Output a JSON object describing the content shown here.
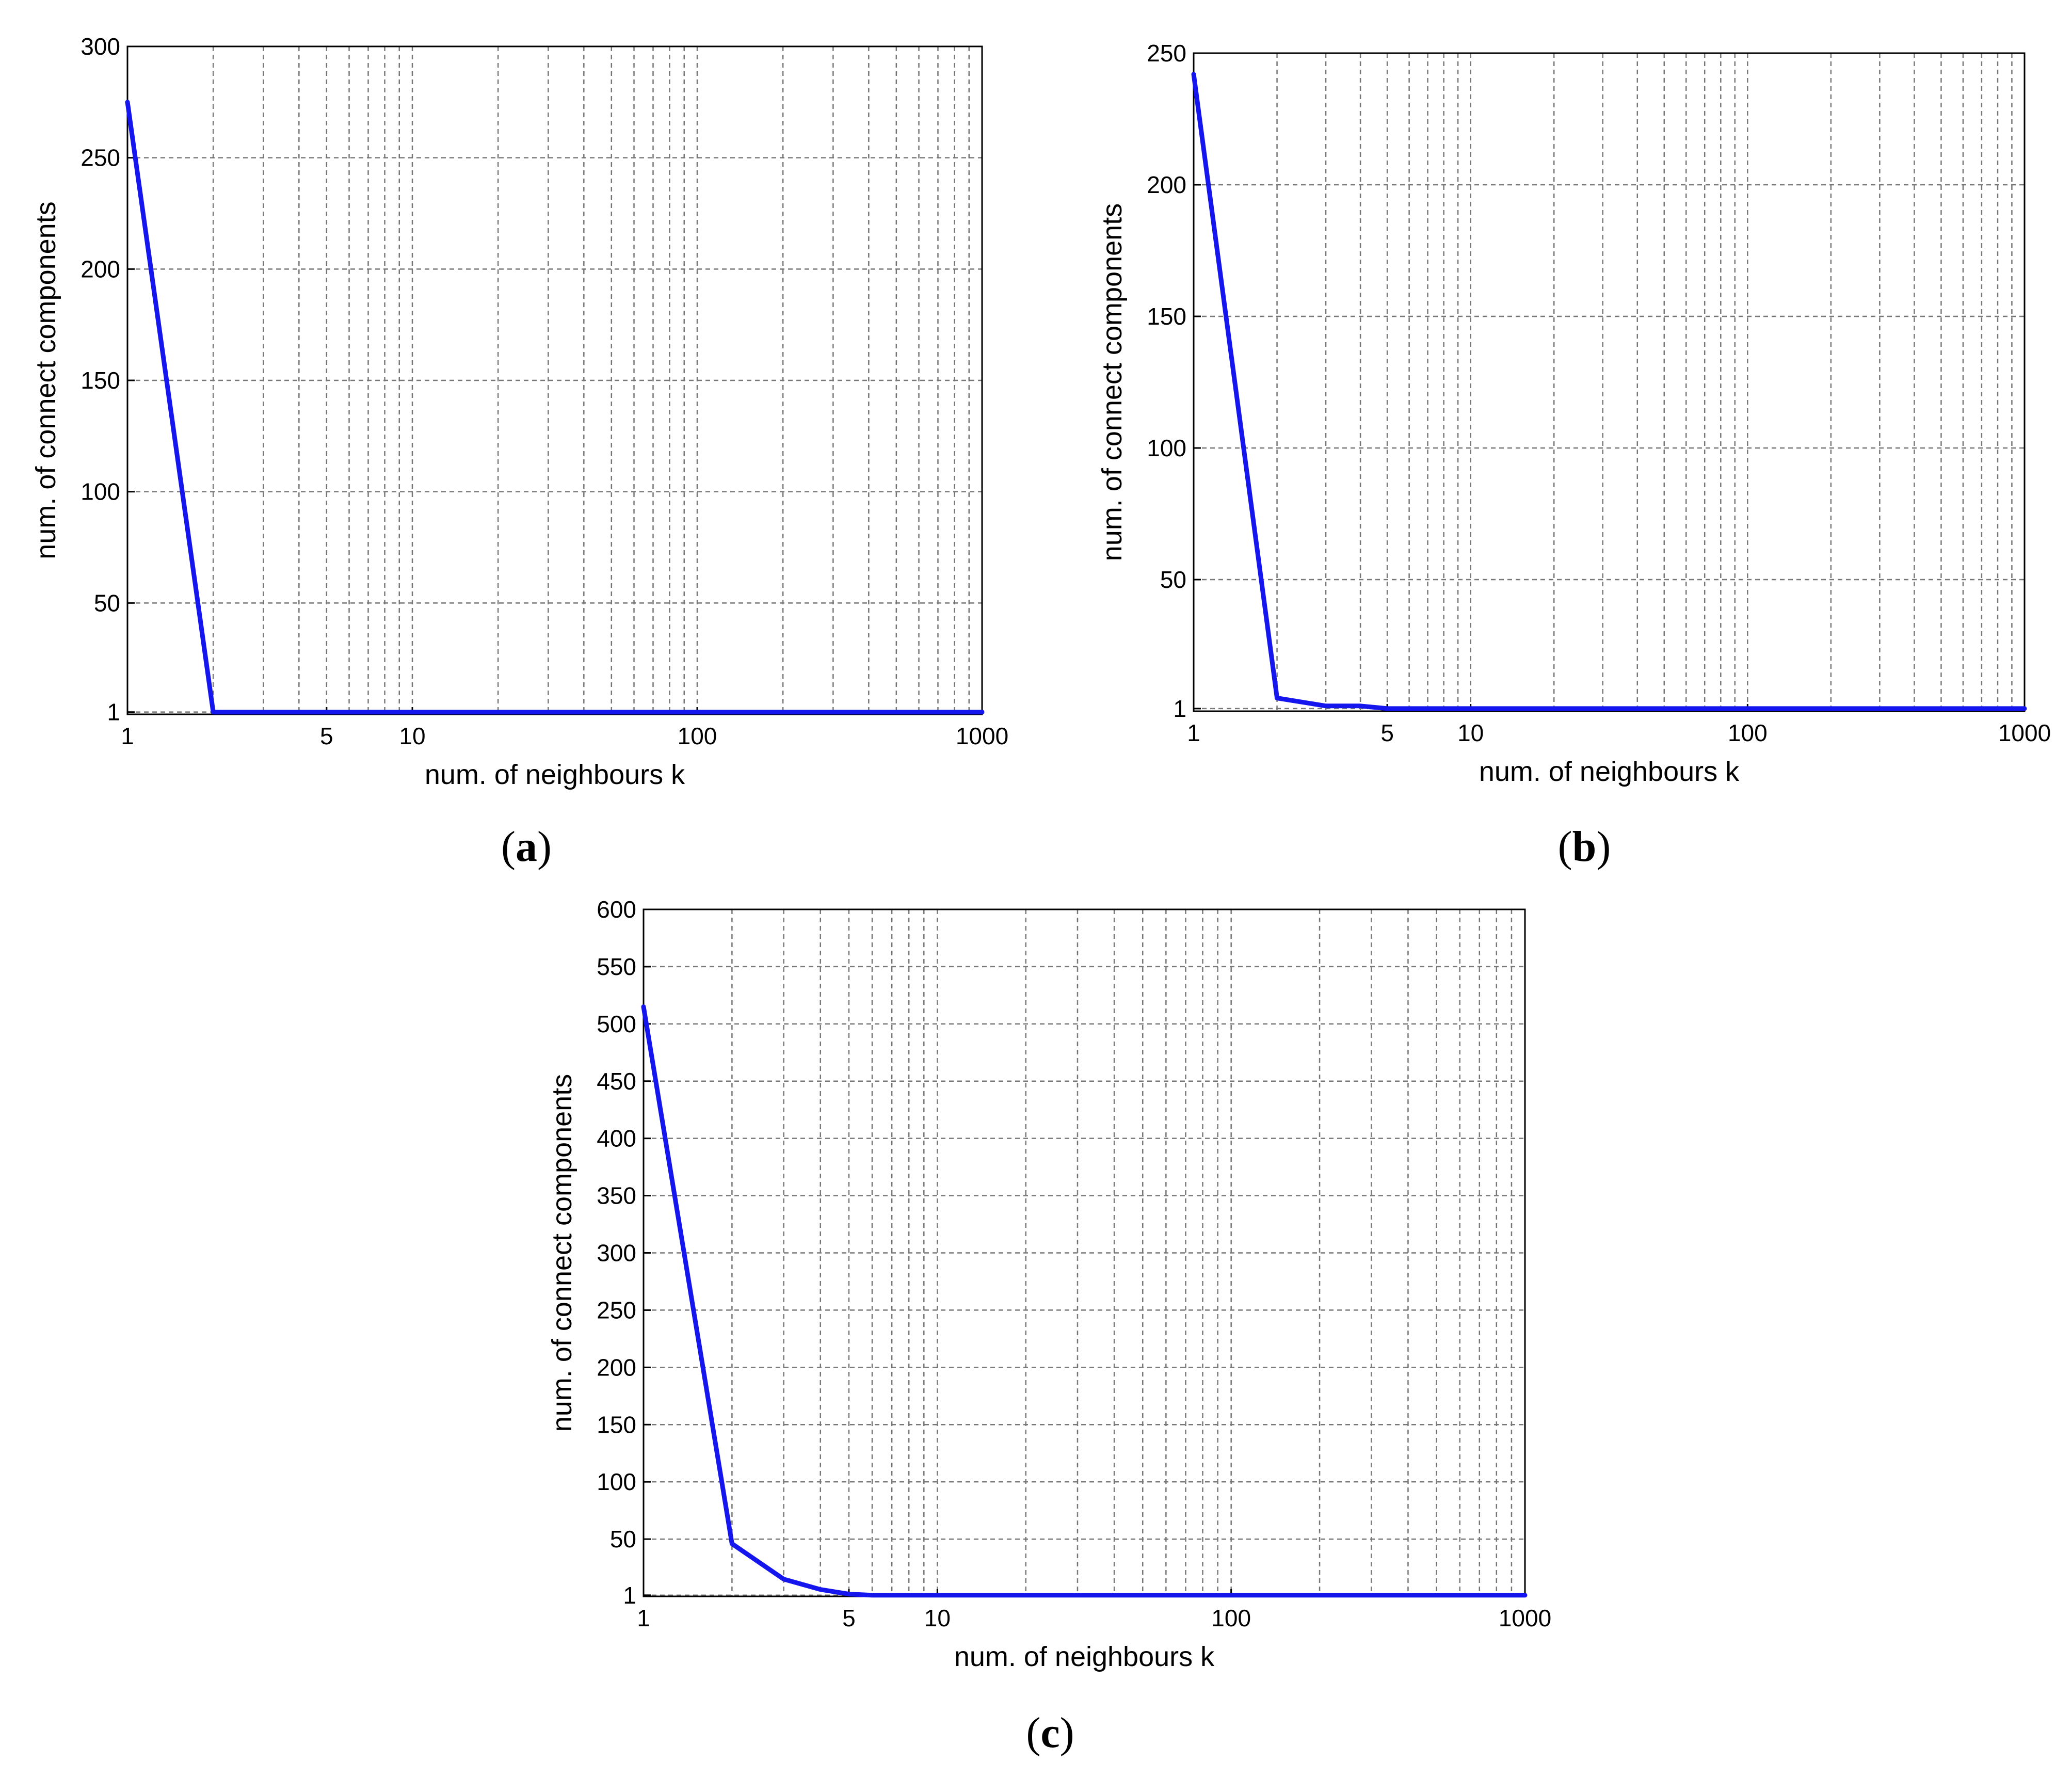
{
  "colors": {
    "series": "#1515ee",
    "grid": "#777777",
    "axes": "#000000"
  },
  "chart_data": [
    {
      "type": "line",
      "panel_label": {
        "open": "(",
        "letter": "a",
        "close": ")"
      },
      "xlabel": "num. of neighbours k",
      "ylabel": "num. of connect components",
      "xscale": "log",
      "xlim": [
        1,
        1000
      ],
      "ylim": [
        0,
        300
      ],
      "xticks": [
        1,
        5,
        10,
        100,
        1000
      ],
      "xtick_labels": [
        "1",
        "5",
        "10",
        "100",
        "1000"
      ],
      "yticks": [
        1,
        50,
        100,
        150,
        200,
        250,
        300
      ],
      "ytick_labels": [
        "1",
        "50",
        "100",
        "150",
        "200",
        "250",
        "300"
      ],
      "grid": true,
      "series": [
        {
          "x": [
            1,
            2,
            3,
            5,
            10,
            100,
            1000
          ],
          "y": [
            275,
            1,
            1,
            1,
            1,
            1,
            1
          ]
        }
      ]
    },
    {
      "type": "line",
      "panel_label": {
        "open": "(",
        "letter": "b",
        "close": ")"
      },
      "xlabel": "num. of neighbours k",
      "ylabel": "num. of connect components",
      "xscale": "log",
      "xlim": [
        1,
        1000
      ],
      "ylim": [
        0,
        250
      ],
      "xticks": [
        1,
        5,
        10,
        100,
        1000
      ],
      "xtick_labels": [
        "1",
        "5",
        "10",
        "100",
        "1000"
      ],
      "yticks": [
        1,
        50,
        100,
        150,
        200,
        250
      ],
      "ytick_labels": [
        "1",
        "50",
        "100",
        "150",
        "200",
        "250"
      ],
      "grid": true,
      "series": [
        {
          "x": [
            1,
            2,
            3,
            4,
            5,
            10,
            100,
            1000
          ],
          "y": [
            242,
            5,
            2,
            2,
            1,
            1,
            1,
            1
          ]
        }
      ]
    },
    {
      "type": "line",
      "panel_label": {
        "open": "(",
        "letter": "c",
        "close": ")"
      },
      "xlabel": "num. of neighbours k",
      "ylabel": "num. of connect components",
      "xscale": "log",
      "xlim": [
        1,
        1000
      ],
      "ylim": [
        0,
        600
      ],
      "xticks": [
        1,
        5,
        10,
        100,
        1000
      ],
      "xtick_labels": [
        "1",
        "5",
        "10",
        "100",
        "1000"
      ],
      "yticks": [
        1,
        50,
        100,
        150,
        200,
        250,
        300,
        350,
        400,
        450,
        500,
        550,
        600
      ],
      "ytick_labels": [
        "1",
        "50",
        "100",
        "150",
        "200",
        "250",
        "300",
        "350",
        "400",
        "450",
        "500",
        "550",
        "600"
      ],
      "grid": true,
      "series": [
        {
          "x": [
            1,
            2,
            3,
            4,
            5,
            6,
            10,
            100,
            1000
          ],
          "y": [
            515,
            46,
            15,
            6,
            2,
            1,
            1,
            1,
            1
          ]
        }
      ]
    }
  ]
}
